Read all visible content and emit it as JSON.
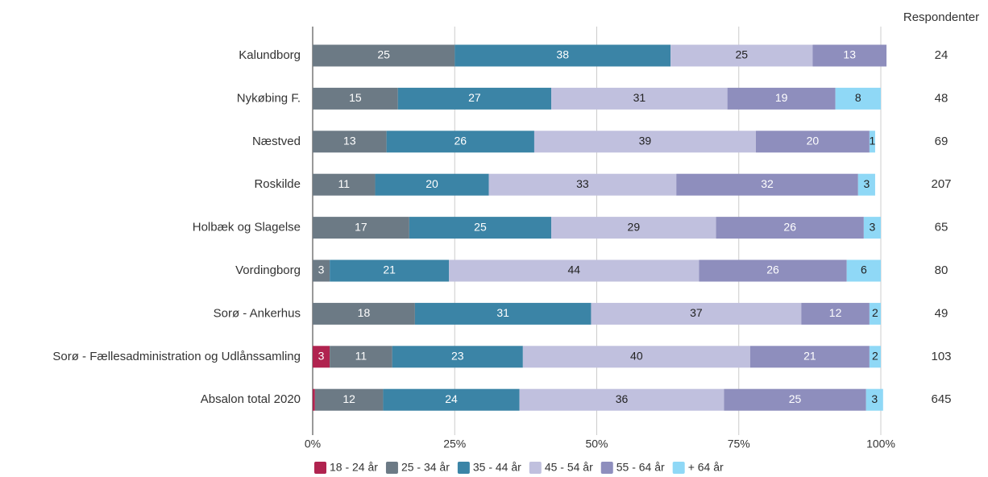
{
  "chart_data": {
    "type": "bar",
    "orientation": "horizontal",
    "stacked": true,
    "categories": [
      "Kalundborg",
      "Nykøbing F.",
      "Næstved",
      "Roskilde",
      "Holbæk og Slagelse",
      "Vordingborg",
      "Sorø - Ankerhus",
      "Sorø - Fællesadministration og Udlånssamling",
      "Absalon total 2020"
    ],
    "series": [
      {
        "name": "18 - 24 år",
        "color": "#b0234f",
        "values": [
          0,
          0,
          0,
          0,
          0,
          0,
          0,
          3,
          0.4
        ]
      },
      {
        "name": "25 - 34 år",
        "color": "#6c7a85",
        "values": [
          25,
          15,
          13,
          11,
          17,
          3,
          18,
          11,
          12
        ]
      },
      {
        "name": "35 - 44 år",
        "color": "#3b84a6",
        "values": [
          38,
          27,
          26,
          20,
          25,
          21,
          31,
          23,
          24
        ]
      },
      {
        "name": "45 - 54 år",
        "color": "#c0c0de",
        "values": [
          25,
          31,
          39,
          33,
          29,
          44,
          37,
          40,
          36
        ]
      },
      {
        "name": "55 - 64 år",
        "color": "#8e8ebd",
        "values": [
          13,
          19,
          20,
          32,
          26,
          26,
          12,
          21,
          25
        ]
      },
      {
        "name": "+ 64 år",
        "color": "#8fd8f6",
        "values": [
          0,
          8,
          1,
          3,
          3,
          6,
          2,
          2,
          3
        ]
      }
    ],
    "xlim": [
      0,
      100
    ],
    "xticks": [
      {
        "value": 0,
        "label": "0%"
      },
      {
        "value": 25,
        "label": "25%"
      },
      {
        "value": 50,
        "label": "50%"
      },
      {
        "value": 75,
        "label": "75%"
      },
      {
        "value": 100,
        "label": "100%"
      }
    ],
    "grid": true,
    "legend": "bottom",
    "respondents": {
      "title": "Respondenter",
      "values": [
        24,
        48,
        69,
        207,
        65,
        80,
        49,
        103,
        645
      ]
    }
  }
}
